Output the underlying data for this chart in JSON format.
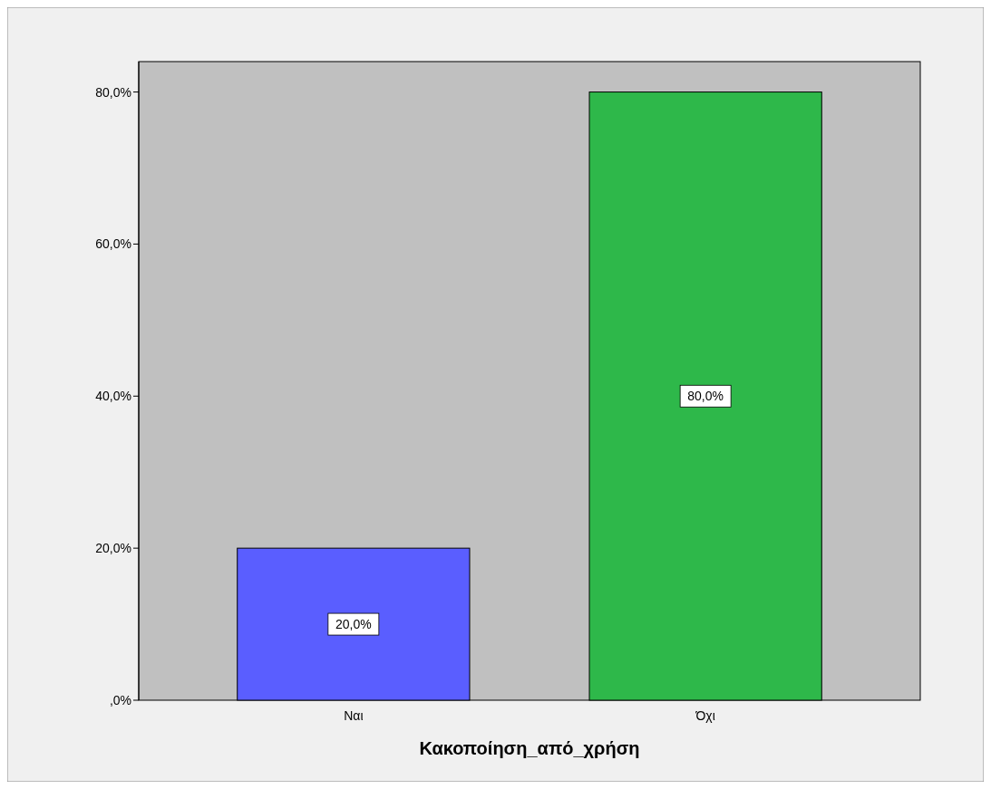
{
  "chart_data": {
    "type": "bar",
    "xlabel": "Κακοποίηση_από_χρήση",
    "categories": [
      "Ναι",
      "Όχι"
    ],
    "values": [
      20,
      80
    ],
    "colors": [
      "#5a5eff",
      "#2eb84a"
    ],
    "value_labels": [
      "20,0%",
      "80,0%"
    ],
    "ylim": [
      0,
      84
    ],
    "yticks": [
      {
        "value": 0,
        "label": ",0%"
      },
      {
        "value": 20,
        "label": "20,0%"
      },
      {
        "value": 40,
        "label": "40,0%"
      },
      {
        "value": 60,
        "label": "60,0%"
      },
      {
        "value": 80,
        "label": "80,0%"
      }
    ],
    "grid": false
  }
}
